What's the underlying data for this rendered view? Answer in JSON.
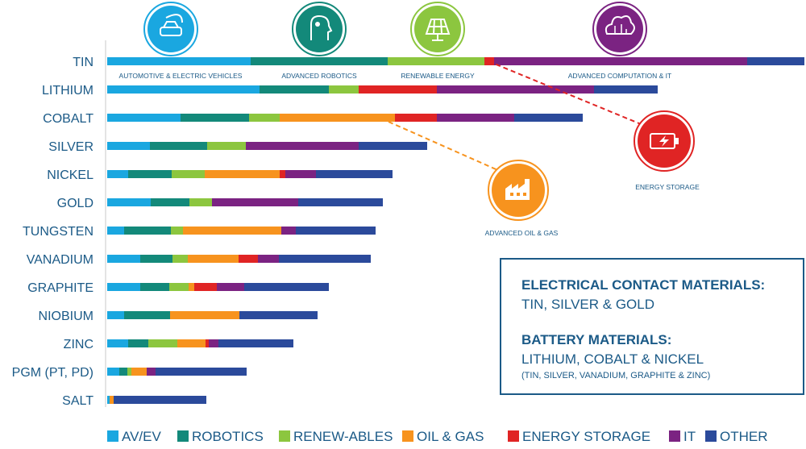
{
  "chart_data": {
    "type": "bar",
    "stacked": true,
    "orientation": "horizontal",
    "categories": [
      "TIN",
      "LITHIUM",
      "COBALT",
      "SILVER",
      "NICKEL",
      "GOLD",
      "TUNGSTEN",
      "VANADIUM",
      "GRAPHITE",
      "NIOBIUM",
      "ZINC",
      "PGM (PT, PD)",
      "SALT"
    ],
    "series": [
      {
        "name": "AV/EV",
        "color": "#1aa7e0",
        "values": [
          178,
          189,
          91,
          53,
          26,
          54,
          21,
          41,
          41,
          21,
          26,
          15,
          3
        ]
      },
      {
        "name": "ROBOTICS",
        "color": "#13897a",
        "values": [
          170,
          86,
          85,
          71,
          54,
          48,
          58,
          40,
          36,
          57,
          25,
          10,
          0
        ]
      },
      {
        "name": "RENEW-ABLES",
        "color": "#8cc63f",
        "values": [
          120,
          37,
          38,
          48,
          41,
          28,
          15,
          19,
          24,
          0,
          36,
          5,
          0
        ]
      },
      {
        "name": "OIL & GAS",
        "color": "#f7931e",
        "values": [
          0,
          0,
          143,
          0,
          93,
          0,
          122,
          63,
          7,
          86,
          35,
          19,
          5
        ]
      },
      {
        "name": "ENERGY STORAGE",
        "color": "#e02424",
        "values": [
          12,
          97,
          52,
          0,
          7,
          0,
          0,
          24,
          28,
          0,
          4,
          0,
          0
        ]
      },
      {
        "name": "IT",
        "color": "#7b2382",
        "values": [
          314,
          195,
          96,
          140,
          38,
          107,
          18,
          26,
          34,
          0,
          12,
          11,
          0
        ]
      },
      {
        "name": "OTHER",
        "color": "#2b4a9b",
        "values": [
          71,
          79,
          85,
          85,
          95,
          105,
          99,
          114,
          105,
          97,
          93,
          113,
          115
        ]
      }
    ],
    "xlabel": "",
    "ylabel": "",
    "legend_position": "bottom",
    "grid": false,
    "annotations": [
      {
        "label": "AUTOMOTIVE & ELECTRIC VEHICLES",
        "color": "#1aa7e0",
        "icon": "car-plug-icon"
      },
      {
        "label": "ADVANCED ROBOTICS",
        "color": "#13897a",
        "icon": "robot-head-icon"
      },
      {
        "label": "RENEWABLE ENERGY",
        "color": "#8cc63f",
        "icon": "solar-panel-icon"
      },
      {
        "label": "ADVANCED COMPUTATION & IT",
        "color": "#7b2382",
        "icon": "cloud-circuit-icon"
      },
      {
        "label": "ENERGY STORAGE",
        "color": "#e02424",
        "icon": "battery-icon"
      },
      {
        "label": "ADVANCED OIL & GAS",
        "color": "#f7931e",
        "icon": "factory-icon"
      }
    ]
  },
  "info_box": {
    "heading1": "ELECTRICAL CONTACT MATERIALS:",
    "line1": "TIN, SILVER & GOLD",
    "heading2": "BATTERY MATERIALS:",
    "line2": "LITHIUM, COBALT & NICKEL",
    "note": "(TIN, SILVER, VANADIUM, GRAPHITE & ZINC)"
  }
}
